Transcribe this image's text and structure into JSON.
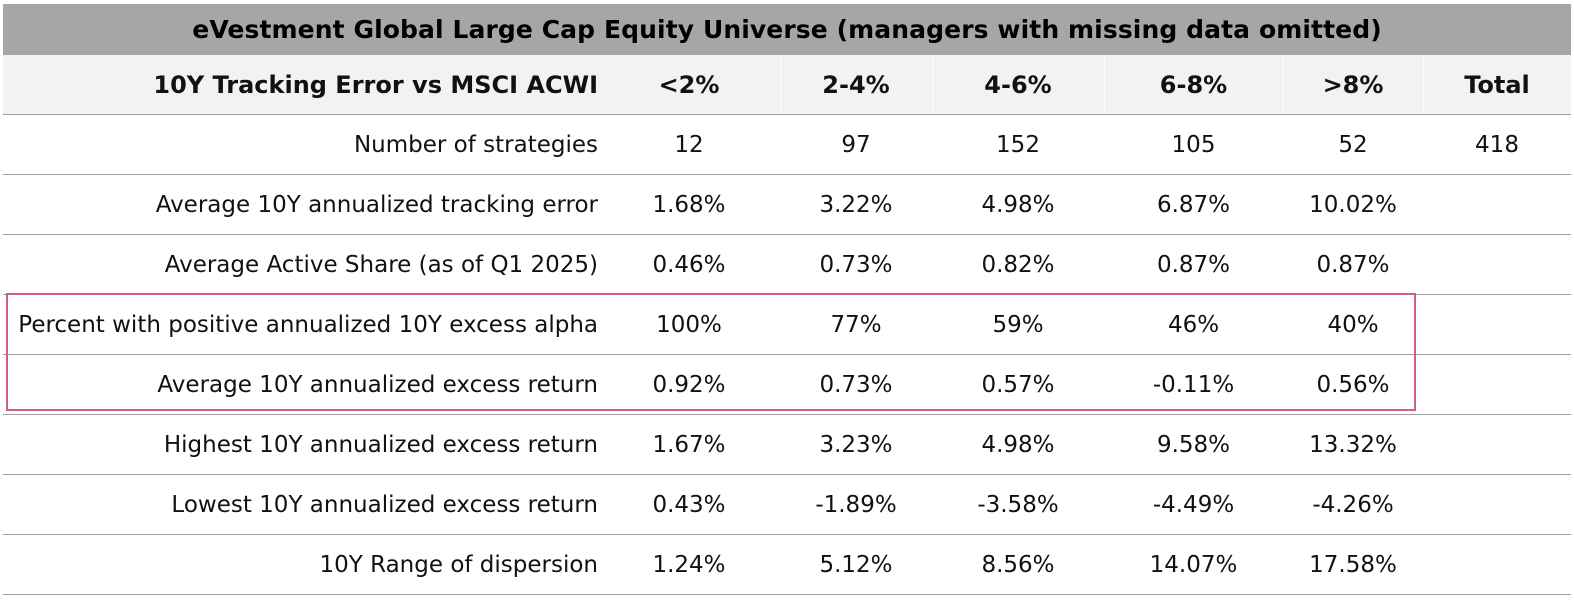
{
  "title": "eVestment Global Large Cap Equity Universe (managers with missing data omitted)",
  "header": {
    "label": "10Y Tracking Error vs MSCI ACWI",
    "columns": [
      "<2%",
      "2-4%",
      "4-6%",
      "6-8%",
      ">8%",
      "Total"
    ]
  },
  "rows": [
    {
      "label": "Number of strategies",
      "values": [
        "12",
        "97",
        "152",
        "105",
        "52",
        "418"
      ]
    },
    {
      "label": "Average 10Y annualized tracking error",
      "values": [
        "1.68%",
        "3.22%",
        "4.98%",
        "6.87%",
        "10.02%",
        ""
      ]
    },
    {
      "label": "Average Active Share (as of Q1 2025)",
      "values": [
        "0.46%",
        "0.73%",
        "0.82%",
        "0.87%",
        "0.87%",
        ""
      ]
    },
    {
      "label": "Percent with positive annualized 10Y excess alpha",
      "values": [
        "100%",
        "77%",
        "59%",
        "46%",
        "40%",
        ""
      ]
    },
    {
      "label": "Average 10Y annualized excess return",
      "values": [
        "0.92%",
        "0.73%",
        "0.57%",
        "-0.11%",
        "0.56%",
        ""
      ]
    },
    {
      "label": "Highest 10Y annualized excess return",
      "values": [
        "1.67%",
        "3.23%",
        "4.98%",
        "9.58%",
        "13.32%",
        ""
      ]
    },
    {
      "label": "Lowest 10Y annualized excess return",
      "values": [
        "0.43%",
        "-1.89%",
        "-3.58%",
        "-4.49%",
        "-4.26%",
        ""
      ]
    },
    {
      "label": "10Y Range of dispersion",
      "values": [
        "1.24%",
        "5.12%",
        "8.56%",
        "14.07%",
        "17.58%",
        ""
      ]
    }
  ],
  "highlight": {
    "rows": [
      3,
      4
    ],
    "color": "#d06078"
  },
  "colors": {
    "title_bg": "#a6a6a6",
    "header_bg": "#f2f2f2",
    "rule": "#a0a0a0"
  }
}
